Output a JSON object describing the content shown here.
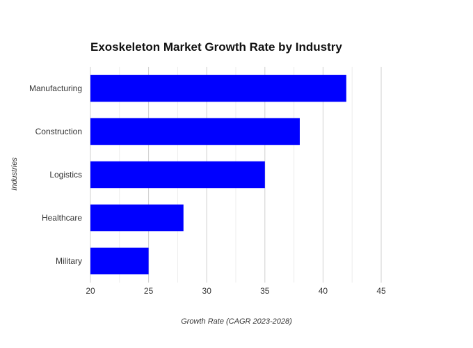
{
  "chart_data": {
    "type": "bar",
    "orientation": "horizontal",
    "title": "Exoskeleton Market Growth Rate by Industry",
    "xlabel": "Growth Rate (CAGR 2023-2028)",
    "ylabel": "Industries",
    "categories": [
      "Manufacturing",
      "Construction",
      "Logistics",
      "Healthcare",
      "Military"
    ],
    "values": [
      42,
      38,
      35,
      28,
      25
    ],
    "xlim": [
      20,
      45
    ],
    "xticks": [
      "20",
      "25",
      "30",
      "35",
      "40",
      "45"
    ],
    "bar_color": "#0000ff",
    "grid": true,
    "legend": "none"
  }
}
